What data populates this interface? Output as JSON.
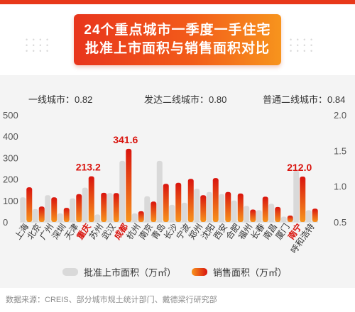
{
  "header": {
    "title_line1": "24个重点城市一季度一手住宅",
    "title_line2": "批准上市面积与销售面积对比"
  },
  "summary": [
    {
      "label": "一线城市：0.82"
    },
    {
      "label": "发达二线城市：0.80"
    },
    {
      "label": "普通二线城市：0.84"
    }
  ],
  "source": "数据来源：CREIS、部分城市规土统计部门、戴德梁行研究部",
  "colors": {
    "approved": "#d9d9d9",
    "sales_start": "#f7941d",
    "sales_end": "#d9140e",
    "highlight_text": "#d9140e"
  },
  "chart_data": {
    "type": "bar",
    "categories": [
      "上海",
      "北京",
      "广州",
      "深圳",
      "天津",
      "重庆",
      "苏州",
      "武汉",
      "成都",
      "杭州",
      "南京",
      "青岛",
      "长沙",
      "宁波",
      "郑州",
      "沈阳",
      "西安",
      "合肥",
      "福州",
      "长春",
      "南昌",
      "厦门",
      "南宁",
      "呼和浩特"
    ],
    "highlighted": [
      "重庆",
      "成都",
      "南宁"
    ],
    "series": [
      {
        "name": "批准上市面积（万㎡）",
        "values": [
          115,
          60,
          125,
          40,
          110,
          160,
          35,
          135,
          285,
          40,
          120,
          285,
          80,
          90,
          155,
          140,
          130,
          100,
          75,
          55,
          85,
          25,
          240,
          55
        ]
      },
      {
        "name": "销售面积（万㎡）",
        "values": [
          162,
          72,
          115,
          66,
          130,
          213.2,
          136,
          135,
          341.6,
          50,
          95,
          178,
          183,
          201,
          125,
          205,
          140,
          133,
          58,
          118,
          70,
          30,
          212.0,
          62
        ]
      }
    ],
    "data_labels": [
      {
        "category": "重庆",
        "text": "213.2"
      },
      {
        "category": "成都",
        "text": "341.6"
      },
      {
        "category": "南宁",
        "text": "212.0"
      }
    ],
    "ylim": [
      0,
      500
    ],
    "yticks": [
      "0",
      "100",
      "200",
      "300",
      "400",
      "500"
    ],
    "y2lim": [
      0.5,
      2.0
    ],
    "y2ticks": [
      "0.5",
      "1.0",
      "1.5",
      "2.0"
    ],
    "legend": {
      "position": "bottom",
      "approved": "批准上市面积（万㎡）",
      "sales": "销售面积（万㎡）"
    }
  }
}
